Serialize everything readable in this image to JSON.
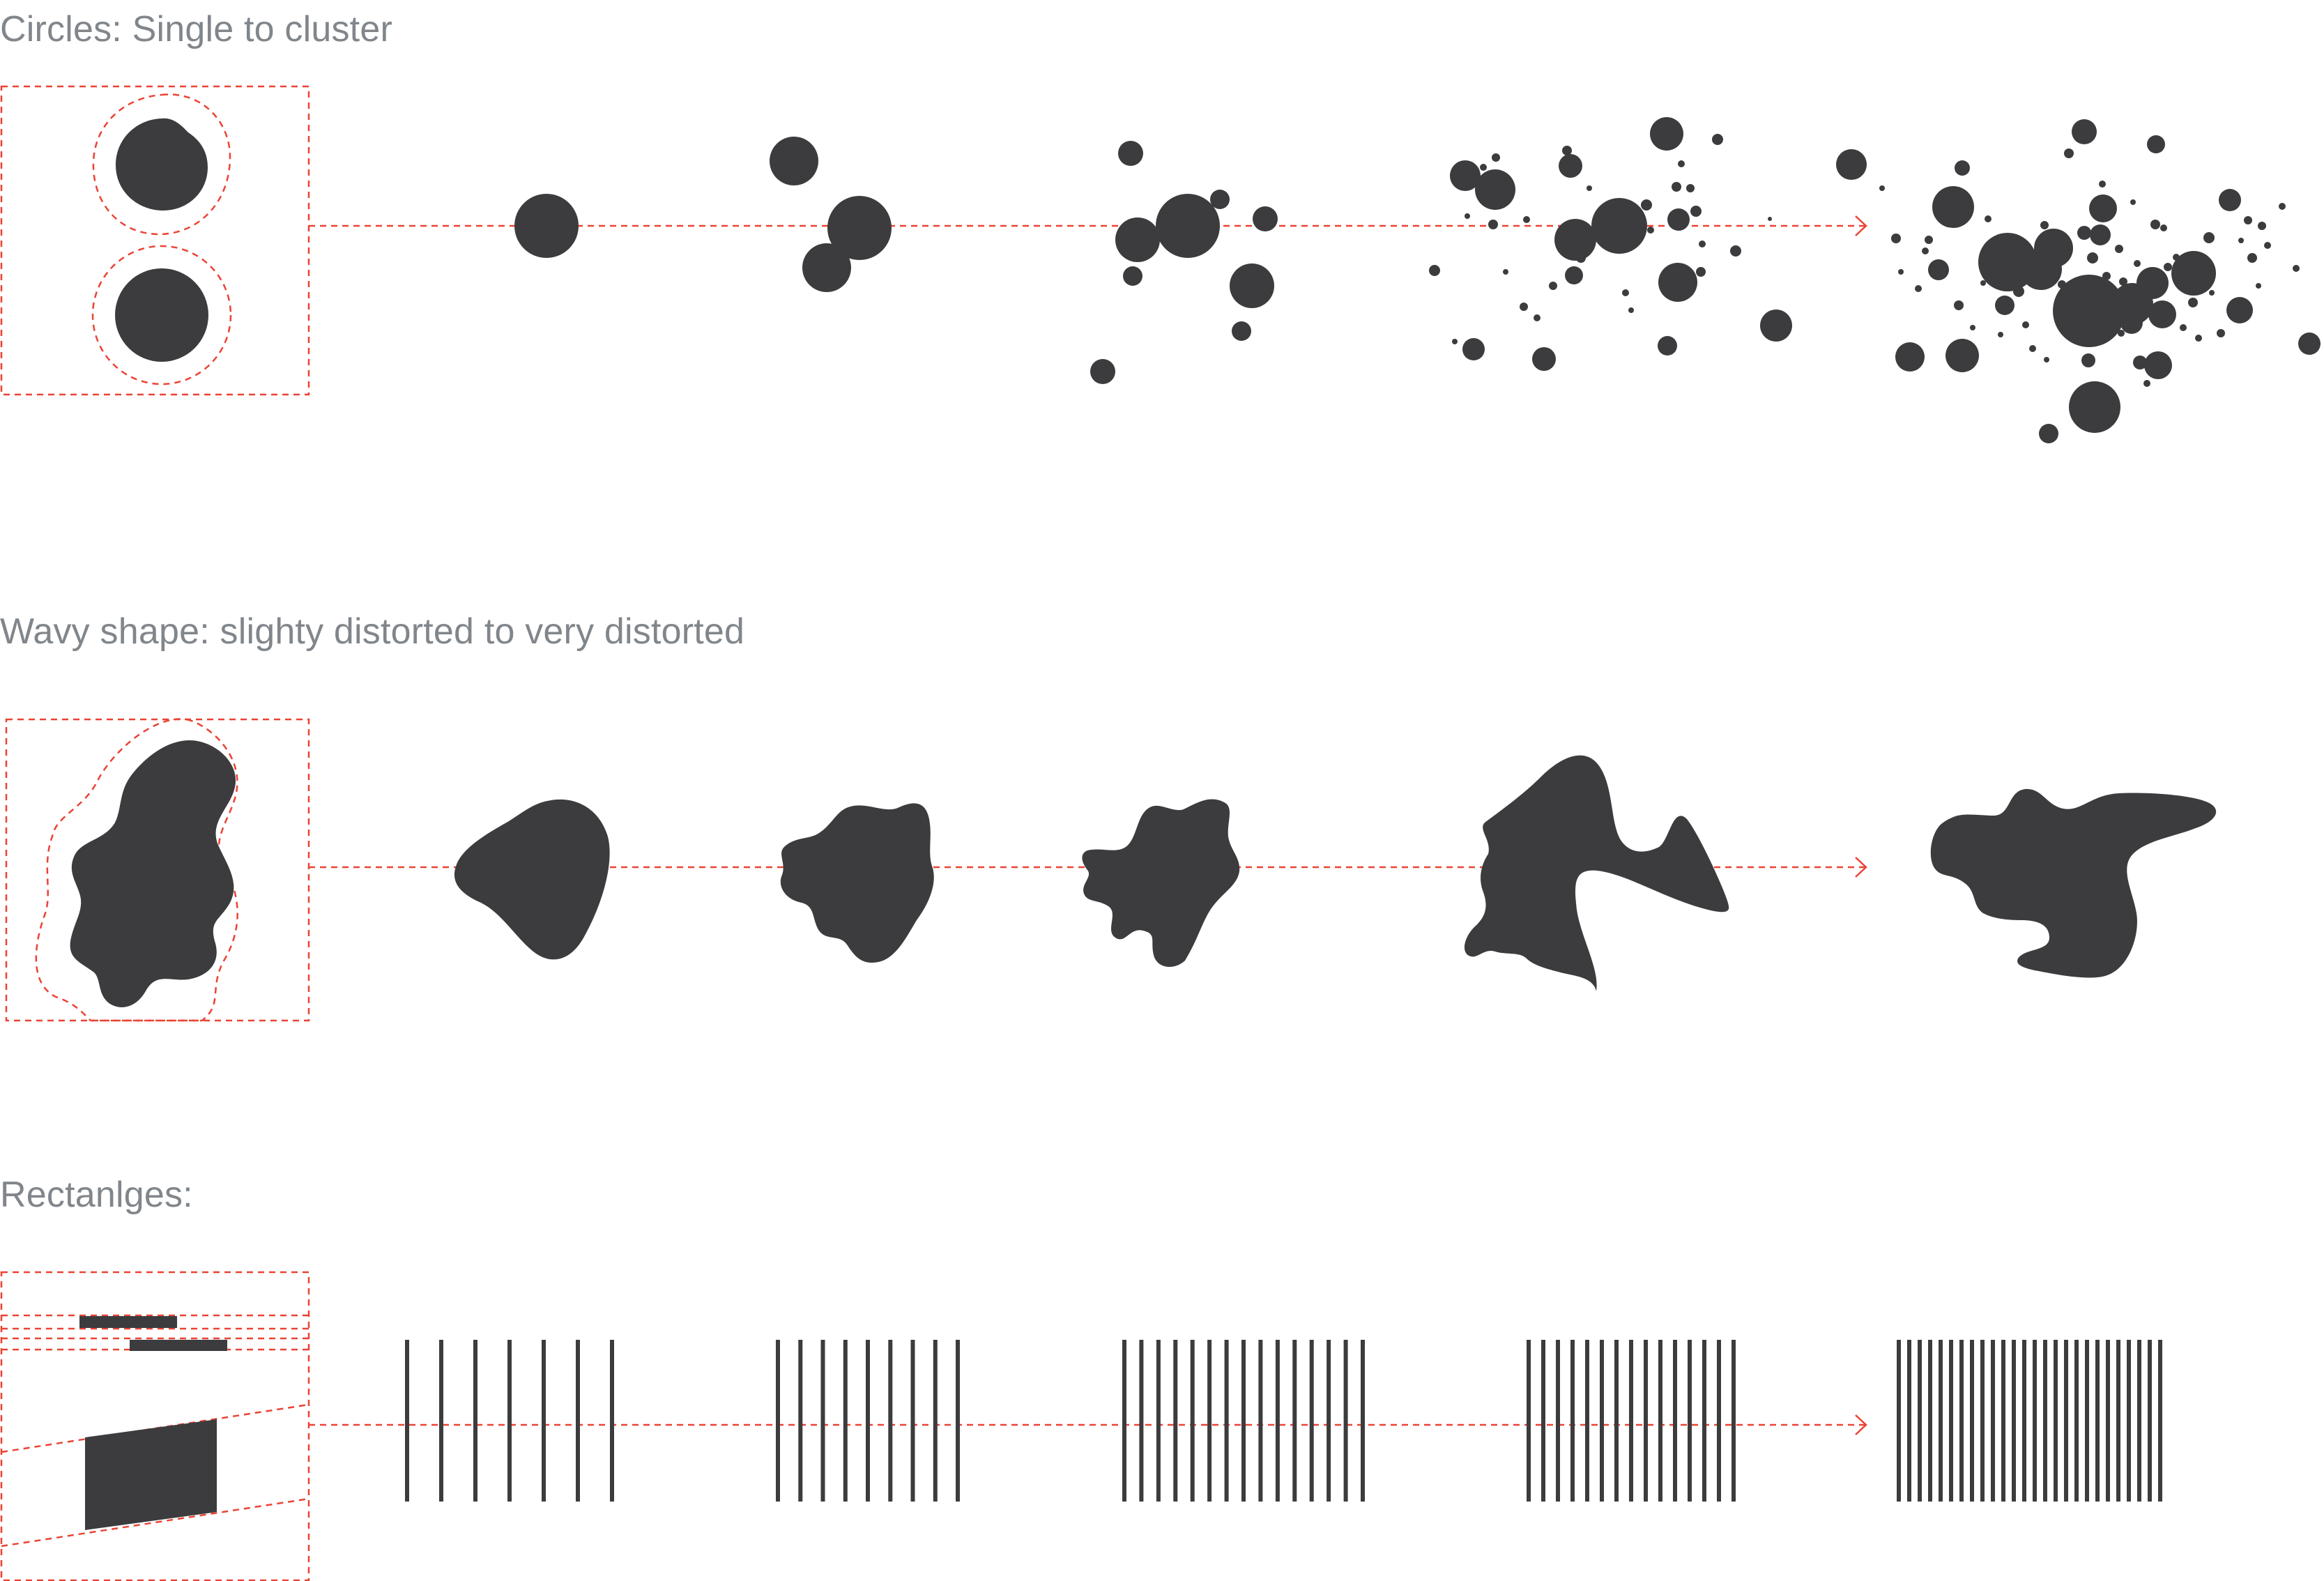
{
  "sections": {
    "circles": {
      "title": "Circles: Single to cluster"
    },
    "wavy": {
      "title": "Wavy shape: slighty distorted  to very distorted"
    },
    "rectangles": {
      "title": "Rectanlges:"
    }
  },
  "colors": {
    "shape": "#3c3c3e",
    "guide": "#ea4335",
    "title": "#80868b",
    "background": "#ffffff"
  },
  "rectangle_bar_counts": [
    7,
    9,
    15,
    15,
    26
  ]
}
